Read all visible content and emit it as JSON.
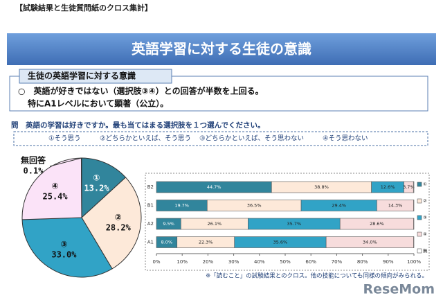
{
  "header": {
    "section": "【試験結果と生徒質問紙のクロス集計】",
    "title": "英語学習に対する生徒の意識"
  },
  "summary": {
    "heading": "生徒の英語学習に対する意識",
    "lines": [
      "○　英語が好きではない（選択肢③④）との回答が半数を上回る。",
      "特にA1レベルにおいて顕著（公立）。"
    ]
  },
  "question": "問　英語の学習は好きですか。最も当てはまる選択肢を１つ選んでください。",
  "options": [
    "①そう思う",
    "②どちらかといえば、そう思う",
    "③どちらかといえば、そう思わない",
    "④そう思わない"
  ],
  "footnote": "※「読むこと」の試験結果とのクロス。他の技能についても同様の傾向がみられる。",
  "watermark": "ReseMom",
  "chart_data": [
    {
      "type": "pie",
      "categories": [
        "①",
        "②",
        "③",
        "④",
        "無回答"
      ],
      "values": [
        13.2,
        28.2,
        33.0,
        25.4,
        0.1
      ],
      "value_labels": [
        "13.2%",
        "28.2%",
        "33.0%",
        "25.4%",
        "0.1%"
      ],
      "colors": [
        "#31859c",
        "#fde9d9",
        "#31a3c6",
        "#fbe3f8",
        "#ffffff"
      ]
    },
    {
      "type": "stacked_bar_horizontal",
      "categories": [
        "B2",
        "B1",
        "A2",
        "A1"
      ],
      "series": [
        {
          "name": "①",
          "color": "#31859c",
          "values": [
            44.7,
            19.7,
            9.5,
            8.0
          ],
          "value_labels": [
            "44.7%",
            "19.7%",
            "9.5%",
            "8.0%"
          ]
        },
        {
          "name": "②",
          "color": "#fde9d9",
          "values": [
            38.8,
            36.5,
            26.1,
            22.3
          ],
          "value_labels": [
            "38.8%",
            "36.5%",
            "26.1%",
            "22.3%"
          ]
        },
        {
          "name": "③",
          "color": "#31a3c6",
          "values": [
            12.6,
            29.4,
            35.7,
            35.6
          ],
          "value_labels": [
            "12.6%",
            "29.4%",
            "35.7%",
            "35.6%"
          ]
        },
        {
          "name": "④",
          "color": "#f7dcdc",
          "values": [
            3.7,
            14.3,
            28.6,
            34.0
          ],
          "value_labels": [
            "3.7%",
            "14.3%",
            "28.6%",
            "34.0%"
          ]
        },
        {
          "name": "無",
          "color": "#ffffff",
          "values": [
            0.2,
            0.1,
            0.1,
            0.1
          ]
        }
      ],
      "xlim": [
        0,
        100
      ],
      "xticks": [
        {
          "value": 0,
          "label": "0%"
        },
        {
          "value": 10,
          "label": "10%"
        },
        {
          "value": 20,
          "label": "20%"
        },
        {
          "value": 30,
          "label": "30%"
        },
        {
          "value": 40,
          "label": "40%"
        },
        {
          "value": 50,
          "label": "50%"
        },
        {
          "value": 60,
          "label": "60%"
        },
        {
          "value": 70,
          "label": "70%"
        },
        {
          "value": 80,
          "label": "80%"
        },
        {
          "value": 90,
          "label": "90%"
        },
        {
          "value": 100,
          "label": "100%"
        }
      ]
    }
  ]
}
